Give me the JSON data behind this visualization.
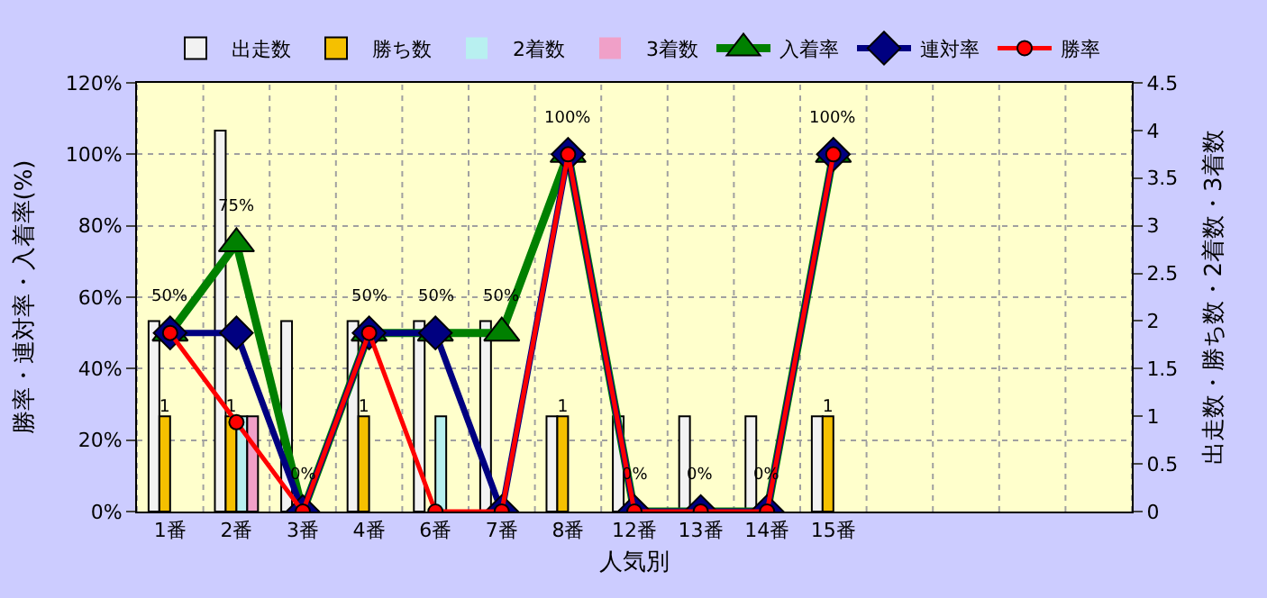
{
  "chart_data": {
    "type": "bar",
    "xlabel": "人気別",
    "ylabel": "勝率・連対率・入着率(%)",
    "y2label": "出走数・勝ち数・2着数・3着数",
    "categories": [
      "1番",
      "2番",
      "3番",
      "4番",
      "6番",
      "7番",
      "8番",
      "12番",
      "13番",
      "14番",
      "15番",
      null,
      null,
      null,
      null
    ],
    "ylim": [
      0,
      120
    ],
    "yticks": [
      {
        "value": 0,
        "label": "0%"
      },
      {
        "value": 20,
        "label": "20%"
      },
      {
        "value": 40,
        "label": "40%"
      },
      {
        "value": 60,
        "label": "60%"
      },
      {
        "value": 80,
        "label": "80%"
      },
      {
        "value": 100,
        "label": "100%"
      },
      {
        "value": 120,
        "label": "120%"
      }
    ],
    "y2lim": [
      0,
      4.5
    ],
    "y2ticks": [
      0,
      0.5,
      1,
      1.5,
      2,
      2.5,
      3,
      3.5,
      4,
      4.5
    ],
    "grid": true,
    "legend": "top",
    "series": [
      {
        "name": "出走数",
        "axis": "y2",
        "color": "#f2f2f2",
        "values": [
          2,
          4,
          2,
          2,
          2,
          2,
          1,
          1,
          1,
          1,
          1,
          null,
          null,
          null,
          null
        ]
      },
      {
        "name": "勝ち数",
        "axis": "y2",
        "color": "#f5c000",
        "values": [
          1,
          1,
          0,
          1,
          0,
          0,
          1,
          0,
          0,
          0,
          1,
          null,
          null,
          null,
          null
        ],
        "value_labels": [
          "1",
          "1",
          null,
          "1",
          null,
          null,
          "1",
          null,
          null,
          null,
          "1",
          null,
          null,
          null,
          null
        ]
      },
      {
        "name": "2着数",
        "axis": "y2",
        "color": "#b8f0f0",
        "values": [
          0,
          1,
          0,
          0,
          1,
          0,
          0,
          0,
          0,
          0,
          0,
          null,
          null,
          null,
          null
        ]
      },
      {
        "name": "3着数",
        "axis": "y2",
        "color": "#f0a0c8",
        "values": [
          0,
          1,
          0,
          0,
          0,
          0,
          0,
          0,
          0,
          0,
          0,
          null,
          null,
          null,
          null
        ]
      },
      {
        "name": "入着率",
        "type": "line",
        "axis": "y",
        "color": "#008000",
        "marker": "triangle",
        "values": [
          50,
          75,
          0,
          50,
          50,
          50,
          100,
          0,
          0,
          0,
          100,
          null,
          null,
          null,
          null
        ],
        "value_labels": [
          "50%",
          "75%",
          "0%",
          "50%",
          "50%",
          "50%",
          "100%",
          "0%",
          "0%",
          "0%",
          "100%",
          null,
          null,
          null,
          null
        ]
      },
      {
        "name": "連対率",
        "type": "line",
        "axis": "y",
        "color": "#000080",
        "marker": "diamond",
        "values": [
          50,
          50,
          0,
          50,
          50,
          0,
          100,
          0,
          0,
          0,
          100,
          null,
          null,
          null,
          null
        ]
      },
      {
        "name": "勝率",
        "type": "line",
        "axis": "y",
        "color": "#ff0000",
        "marker": "circle",
        "values": [
          50,
          25,
          0,
          50,
          0,
          0,
          100,
          0,
          0,
          0,
          100,
          null,
          null,
          null,
          null
        ]
      }
    ]
  }
}
